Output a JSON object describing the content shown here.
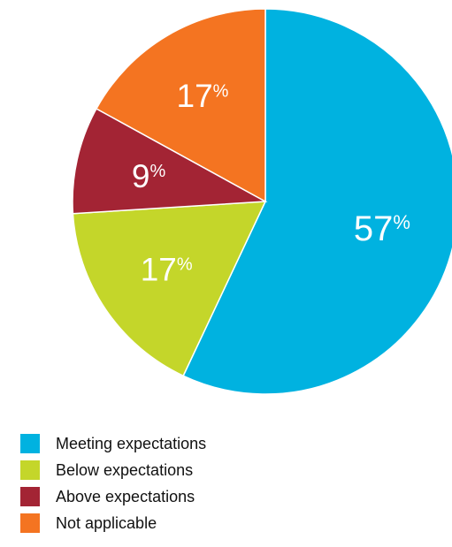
{
  "chart_data": {
    "type": "pie",
    "title": "",
    "slices": [
      {
        "label": "Meeting expectations",
        "value": 57,
        "display": "57",
        "color": "#00b2e0"
      },
      {
        "label": "Below expectations",
        "value": 17,
        "display": "17",
        "color": "#c4d62a"
      },
      {
        "label": "Above expectations",
        "value": 9,
        "display": "9",
        "color": "#a32434"
      },
      {
        "label": "Not applicable",
        "value": 17,
        "display": "17",
        "color": "#f47421"
      }
    ],
    "percent_symbol": "%",
    "legend_position": "bottom-left"
  },
  "legend": {
    "items": [
      {
        "label": "Meeting expectations",
        "color": "#00b2e0"
      },
      {
        "label": "Below expectations",
        "color": "#c4d62a"
      },
      {
        "label": "Above expectations",
        "color": "#a32434"
      },
      {
        "label": "Not applicable",
        "color": "#f47421"
      }
    ]
  }
}
